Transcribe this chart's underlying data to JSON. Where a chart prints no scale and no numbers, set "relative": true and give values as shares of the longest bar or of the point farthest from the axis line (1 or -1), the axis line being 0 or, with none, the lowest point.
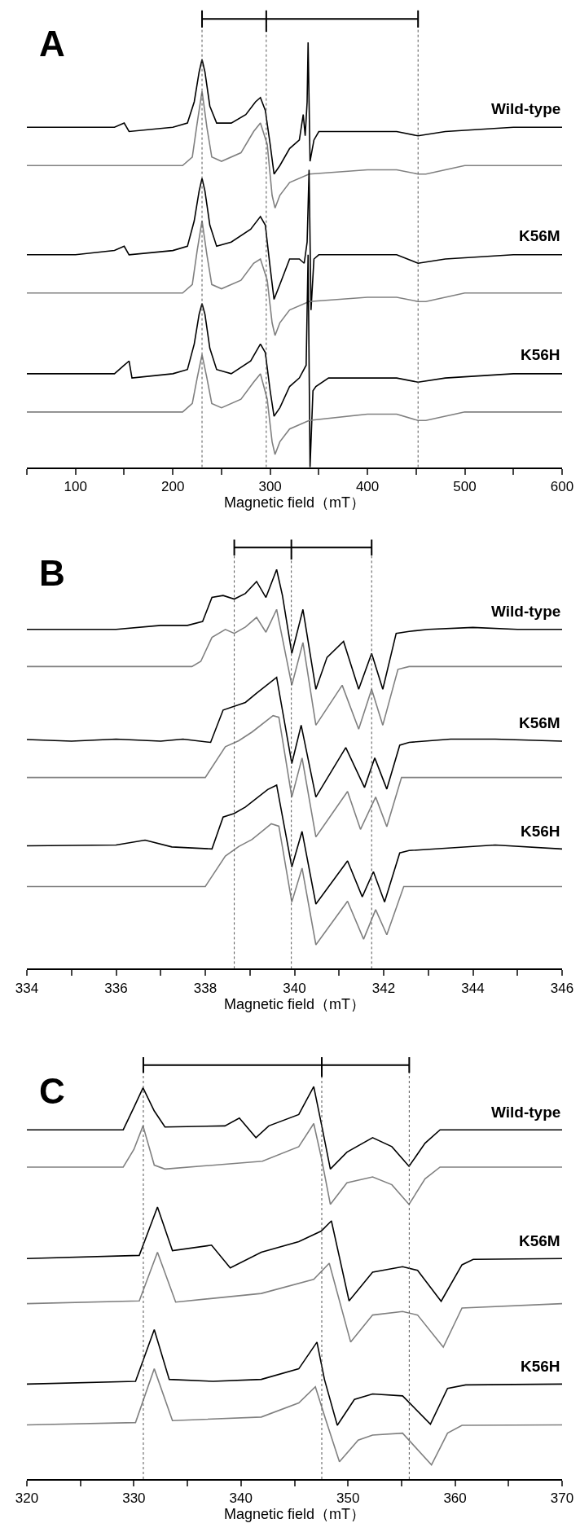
{
  "chart_data": [
    {
      "type": "line",
      "title": "A",
      "xlabel": "Magnetic field（mT）",
      "relative": true,
      "marker": "none",
      "line_style": "solid",
      "xlim": [
        50,
        600
      ],
      "xticks": [
        {
          "value": 50,
          "label": null
        },
        100,
        {
          "value": 150,
          "label": null
        },
        200,
        {
          "value": 250,
          "label": null
        },
        300,
        {
          "value": 350,
          "label": null
        },
        400,
        {
          "value": 450,
          "label": null
        },
        500,
        {
          "value": 550,
          "label": null
        },
        600
      ],
      "ref_lines": [
        {
          "axis": "x",
          "value": 230,
          "color": "#555555",
          "line_style": "dotted"
        },
        {
          "axis": "x",
          "value": 296,
          "color": "#555555",
          "line_style": "dotted"
        },
        {
          "axis": "x",
          "value": 452,
          "color": "#555555",
          "line_style": "dotted"
        }
      ],
      "series": [
        {
          "name": "Wild-type",
          "color": "#000000",
          "x": [
            50,
            140,
            150,
            155,
            200,
            215,
            222,
            227,
            230,
            233,
            238,
            245,
            260,
            275,
            285,
            290,
            295,
            300,
            304,
            310,
            320,
            330,
            334,
            336,
            338,
            339,
            341,
            345,
            350,
            400,
            430,
            452,
            480,
            550,
            600
          ],
          "values": [
            0.8,
            0.8,
            0.81,
            0.79,
            0.8,
            0.81,
            0.86,
            0.93,
            0.96,
            0.93,
            0.85,
            0.81,
            0.81,
            0.83,
            0.86,
            0.87,
            0.84,
            0.76,
            0.69,
            0.71,
            0.75,
            0.77,
            0.83,
            0.78,
            0.86,
            1.0,
            0.72,
            0.77,
            0.79,
            0.79,
            0.79,
            0.78,
            0.79,
            0.8,
            0.8
          ]
        },
        {
          "color": "#808080",
          "x": [
            50,
            210,
            220,
            225,
            230,
            235,
            240,
            250,
            270,
            283,
            290,
            297,
            302,
            305,
            310,
            320,
            340,
            400,
            430,
            452,
            460,
            480,
            500,
            600
          ],
          "values": [
            0.71,
            0.71,
            0.73,
            0.81,
            0.885,
            0.8,
            0.73,
            0.72,
            0.74,
            0.79,
            0.81,
            0.76,
            0.64,
            0.61,
            0.64,
            0.67,
            0.69,
            0.7,
            0.7,
            0.69,
            0.69,
            0.7,
            0.71,
            0.71
          ]
        },
        {
          "name": "K56M",
          "color": "#000000",
          "x": [
            50,
            100,
            140,
            150,
            155,
            200,
            215,
            222,
            227,
            230,
            233,
            238,
            245,
            260,
            280,
            290,
            295,
            300,
            304,
            310,
            320,
            330,
            335,
            338,
            340,
            342,
            345,
            350,
            400,
            430,
            452,
            480,
            550,
            600
          ],
          "values": [
            0.5,
            0.5,
            0.51,
            0.52,
            0.5,
            0.51,
            0.52,
            0.58,
            0.65,
            0.68,
            0.65,
            0.57,
            0.52,
            0.53,
            0.56,
            0.59,
            0.57,
            0.47,
            0.395,
            0.43,
            0.49,
            0.49,
            0.48,
            0.53,
            0.7,
            0.37,
            0.49,
            0.5,
            0.5,
            0.5,
            0.48,
            0.49,
            0.5,
            0.5
          ]
        },
        {
          "color": "#808080",
          "x": [
            50,
            210,
            220,
            225,
            230,
            235,
            240,
            250,
            270,
            283,
            290,
            297,
            302,
            305,
            310,
            320,
            340,
            400,
            430,
            452,
            460,
            480,
            500,
            600
          ],
          "values": [
            0.41,
            0.41,
            0.43,
            0.51,
            0.58,
            0.5,
            0.43,
            0.42,
            0.44,
            0.48,
            0.49,
            0.44,
            0.34,
            0.31,
            0.34,
            0.37,
            0.39,
            0.4,
            0.4,
            0.39,
            0.39,
            0.4,
            0.41,
            0.41
          ]
        },
        {
          "name": "K56H",
          "color": "#000000",
          "x": [
            50,
            100,
            140,
            150,
            155,
            158,
            200,
            215,
            222,
            227,
            230,
            233,
            238,
            245,
            260,
            280,
            290,
            295,
            300,
            304,
            310,
            320,
            330,
            337,
            339,
            341,
            344,
            347,
            360,
            400,
            430,
            452,
            480,
            550,
            600
          ],
          "values": [
            0.22,
            0.22,
            0.22,
            0.24,
            0.25,
            0.21,
            0.22,
            0.23,
            0.29,
            0.36,
            0.385,
            0.36,
            0.28,
            0.23,
            0.22,
            0.25,
            0.29,
            0.27,
            0.18,
            0.12,
            0.14,
            0.19,
            0.21,
            0.24,
            0.5,
            0.0,
            0.18,
            0.19,
            0.21,
            0.21,
            0.21,
            0.2,
            0.21,
            0.22,
            0.22
          ]
        },
        {
          "color": "#808080",
          "x": [
            50,
            210,
            220,
            225,
            230,
            235,
            240,
            250,
            270,
            283,
            290,
            297,
            302,
            305,
            310,
            320,
            340,
            400,
            430,
            452,
            460,
            480,
            500,
            600
          ],
          "values": [
            0.13,
            0.13,
            0.15,
            0.21,
            0.265,
            0.21,
            0.15,
            0.14,
            0.16,
            0.2,
            0.22,
            0.16,
            0.06,
            0.03,
            0.06,
            0.09,
            0.11,
            0.125,
            0.125,
            0.11,
            0.11,
            0.12,
            0.13,
            0.13
          ]
        }
      ]
    },
    {
      "type": "line",
      "title": "B",
      "xlabel": "Magnetic field（mT）",
      "relative": true,
      "marker": "none",
      "line_style": "solid",
      "xlim": [
        334,
        346
      ],
      "xticks": [
        334,
        {
          "value": 335,
          "label": null
        },
        336,
        {
          "value": 337,
          "label": null
        },
        338,
        {
          "value": 339,
          "label": null
        },
        340,
        {
          "value": 341,
          "label": null
        },
        342,
        {
          "value": 343,
          "label": null
        },
        344,
        {
          "value": 345,
          "label": null
        },
        346
      ],
      "ref_lines": [
        {
          "axis": "x",
          "value": 338.65,
          "color": "#555555",
          "line_style": "dotted"
        },
        {
          "axis": "x",
          "value": 339.93,
          "color": "#555555",
          "line_style": "dotted"
        },
        {
          "axis": "x",
          "value": 341.73,
          "color": "#555555",
          "line_style": "dotted"
        }
      ],
      "series": [
        {
          "name": "Wild-type",
          "color": "#000000",
          "x": [
            334,
            335,
            336,
            337,
            337.6,
            337.94,
            338.15,
            338.4,
            338.65,
            338.9,
            339.15,
            339.36,
            339.6,
            339.73,
            339.94,
            340.19,
            340.48,
            340.73,
            341.1,
            341.44,
            341.73,
            341.98,
            342.28,
            342.57,
            343,
            344,
            345,
            346
          ],
          "values": [
            0.85,
            0.85,
            0.85,
            0.86,
            0.86,
            0.87,
            0.93,
            0.935,
            0.926,
            0.94,
            0.97,
            0.93,
            1.0,
            0.935,
            0.79,
            0.9,
            0.7,
            0.78,
            0.82,
            0.7,
            0.79,
            0.7,
            0.84,
            0.845,
            0.85,
            0.855,
            0.85,
            0.85
          ]
        },
        {
          "color": "#808080",
          "x": [
            334,
            337.7,
            337.9,
            338.15,
            338.45,
            338.65,
            338.9,
            339.15,
            339.36,
            339.6,
            339.94,
            340.19,
            340.48,
            341.07,
            341.44,
            341.73,
            341.98,
            342.32,
            342.57,
            346
          ],
          "values": [
            0.757,
            0.757,
            0.77,
            0.83,
            0.85,
            0.84,
            0.856,
            0.88,
            0.843,
            0.9,
            0.71,
            0.817,
            0.61,
            0.71,
            0.6,
            0.7,
            0.61,
            0.75,
            0.757,
            0.757
          ]
        },
        {
          "name": "K56M",
          "color": "#000000",
          "x": [
            334,
            335,
            336,
            337,
            337.5,
            338.12,
            338.4,
            338.9,
            339.15,
            339.6,
            339.94,
            340.15,
            340.48,
            341.15,
            341.57,
            341.8,
            342.07,
            342.36,
            342.57,
            343.5,
            344.5,
            346
          ],
          "values": [
            0.574,
            0.57,
            0.575,
            0.57,
            0.575,
            0.567,
            0.648,
            0.667,
            0.69,
            0.73,
            0.514,
            0.61,
            0.43,
            0.554,
            0.454,
            0.528,
            0.45,
            0.56,
            0.567,
            0.575,
            0.575,
            0.57
          ]
        },
        {
          "color": "#808080",
          "x": [
            334,
            338.0,
            338.45,
            338.75,
            339.05,
            339.52,
            339.65,
            339.94,
            340.17,
            340.48,
            341.19,
            341.48,
            341.82,
            342.07,
            342.4,
            346
          ],
          "values": [
            0.479,
            0.479,
            0.556,
            0.571,
            0.593,
            0.634,
            0.63,
            0.43,
            0.528,
            0.33,
            0.444,
            0.349,
            0.43,
            0.356,
            0.479,
            0.479
          ]
        },
        {
          "name": "K56H",
          "color": "#000000",
          "x": [
            334,
            336,
            336.65,
            337.25,
            338.15,
            338.4,
            338.65,
            338.9,
            339.4,
            339.6,
            339.94,
            340.17,
            340.48,
            341.19,
            341.52,
            341.77,
            342.02,
            342.36,
            342.57,
            344.5,
            346
          ],
          "values": [
            0.308,
            0.31,
            0.322,
            0.305,
            0.3,
            0.38,
            0.389,
            0.405,
            0.449,
            0.46,
            0.255,
            0.344,
            0.162,
            0.27,
            0.18,
            0.243,
            0.167,
            0.29,
            0.296,
            0.31,
            0.3
          ]
        },
        {
          "color": "#808080",
          "x": [
            334,
            338.0,
            338.45,
            338.75,
            339.05,
            339.48,
            339.65,
            339.94,
            340.17,
            340.48,
            341.19,
            341.55,
            341.82,
            342.07,
            342.45,
            346
          ],
          "values": [
            0.206,
            0.206,
            0.282,
            0.306,
            0.324,
            0.363,
            0.357,
            0.167,
            0.252,
            0.06,
            0.169,
            0.074,
            0.148,
            0.085,
            0.206,
            0.206
          ]
        }
      ]
    },
    {
      "type": "line",
      "title": "C",
      "xlabel": "Magnetic field（mT）",
      "relative": true,
      "marker": "none",
      "line_style": "solid",
      "xlim": [
        320,
        370
      ],
      "xticks": [
        320,
        {
          "value": 325,
          "label": null
        },
        330,
        {
          "value": 335,
          "label": null
        },
        340,
        {
          "value": 345,
          "label": null
        },
        350,
        {
          "value": 355,
          "label": null
        },
        360,
        {
          "value": 365,
          "label": null
        },
        370
      ],
      "ref_lines": [
        {
          "axis": "x",
          "value": 330.88,
          "color": "#555555",
          "line_style": "dotted"
        },
        {
          "axis": "x",
          "value": 347.55,
          "color": "#555555",
          "line_style": "dotted"
        },
        {
          "axis": "x",
          "value": 355.72,
          "color": "#555555",
          "line_style": "dotted"
        }
      ],
      "series": [
        {
          "name": "Wild-type",
          "color": "#000000",
          "x": [
            320,
            329,
            330,
            330.85,
            331.9,
            332.9,
            338.5,
            339.85,
            341.4,
            342.6,
            345.4,
            346.8,
            347.55,
            348.35,
            349.9,
            352.3,
            354.1,
            355.7,
            357.2,
            358.6,
            370
          ],
          "values": [
            0.89,
            0.89,
            0.947,
            0.997,
            0.938,
            0.897,
            0.9,
            0.92,
            0.87,
            0.9,
            0.929,
            1.0,
            0.9,
            0.79,
            0.833,
            0.87,
            0.847,
            0.797,
            0.856,
            0.89,
            0.89
          ]
        },
        {
          "color": "#808080",
          "x": [
            320,
            329,
            330,
            330.85,
            331.9,
            332.9,
            342,
            345.4,
            346.8,
            347.5,
            348.35,
            349.9,
            352.3,
            354.1,
            355.7,
            357.2,
            358.6,
            370
          ],
          "values": [
            0.795,
            0.795,
            0.84,
            0.9,
            0.8,
            0.79,
            0.81,
            0.847,
            0.906,
            0.82,
            0.7,
            0.755,
            0.77,
            0.75,
            0.7,
            0.765,
            0.795,
            0.795
          ]
        },
        {
          "name": "K56M",
          "color": "#000000",
          "x": [
            320,
            330.5,
            332.2,
            333.6,
            337.25,
            339,
            341.9,
            345.4,
            347.5,
            348.45,
            350.1,
            352.3,
            355.1,
            356.5,
            358.7,
            360.65,
            361.7,
            370
          ],
          "values": [
            0.562,
            0.57,
            0.693,
            0.582,
            0.596,
            0.538,
            0.578,
            0.605,
            0.632,
            0.658,
            0.454,
            0.527,
            0.541,
            0.532,
            0.453,
            0.546,
            0.56,
            0.562
          ]
        },
        {
          "color": "#808080",
          "x": [
            320,
            330.5,
            332.2,
            333.9,
            341.9,
            346.8,
            348.25,
            350.25,
            352.3,
            355.1,
            356.5,
            358.9,
            360.65,
            370
          ],
          "values": [
            0.447,
            0.454,
            0.578,
            0.451,
            0.473,
            0.509,
            0.55,
            0.349,
            0.418,
            0.427,
            0.418,
            0.336,
            0.436,
            0.447
          ]
        },
        {
          "name": "K56H",
          "color": "#000000",
          "x": [
            320,
            330.15,
            331.9,
            333.3,
            337.4,
            341.9,
            345.4,
            347.1,
            347.8,
            349.0,
            350.6,
            352.3,
            355.1,
            357.7,
            359.3,
            361,
            370
          ],
          "values": [
            0.242,
            0.249,
            0.381,
            0.254,
            0.249,
            0.254,
            0.281,
            0.349,
            0.254,
            0.137,
            0.203,
            0.217,
            0.212,
            0.14,
            0.231,
            0.24,
            0.242
          ]
        },
        {
          "color": "#808080",
          "x": [
            320,
            330.15,
            331.9,
            333.6,
            341.9,
            345.4,
            346.95,
            347.9,
            349.2,
            350.95,
            352.3,
            355.1,
            357.8,
            359.3,
            360.65,
            370
          ],
          "values": [
            0.138,
            0.144,
            0.281,
            0.149,
            0.158,
            0.194,
            0.235,
            0.153,
            0.044,
            0.099,
            0.112,
            0.117,
            0.036,
            0.117,
            0.137,
            0.138
          ]
        }
      ]
    }
  ]
}
